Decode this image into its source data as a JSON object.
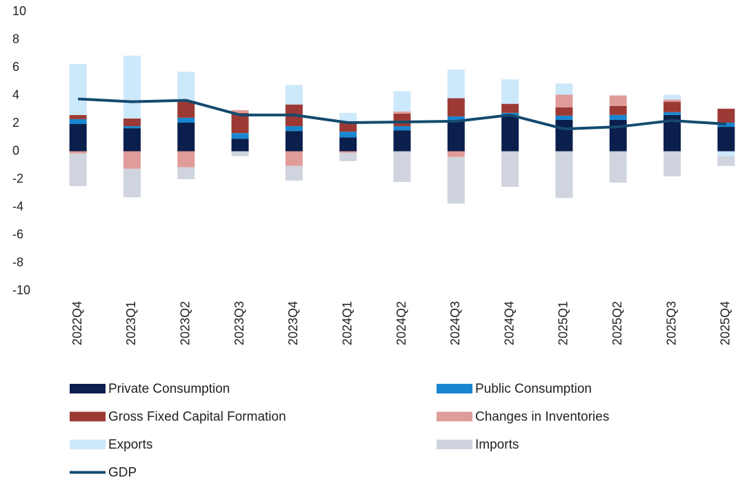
{
  "chart_data": {
    "type": "bar",
    "categories": [
      "2022Q4",
      "2023Q1",
      "2023Q2",
      "2023Q3",
      "2023Q4",
      "2024Q1",
      "2024Q2",
      "2024Q3",
      "2024Q4",
      "2025Q1",
      "2025Q2",
      "2025Q3",
      "2025Q4"
    ],
    "series": [
      {
        "name": "Private Consumption",
        "color": "#0b1f4d",
        "values": [
          1.95,
          1.65,
          2.05,
          0.9,
          1.45,
          1.0,
          1.5,
          2.2,
          2.55,
          2.25,
          2.25,
          2.6,
          1.75
        ]
      },
      {
        "name": "Public Consumption",
        "color": "#1a86d0",
        "values": [
          0.35,
          0.15,
          0.35,
          0.4,
          0.35,
          0.4,
          0.3,
          0.3,
          0.2,
          0.3,
          0.35,
          0.2,
          0.3
        ]
      },
      {
        "name": "Gross Fixed Capital Formation",
        "color": "#9b3a35",
        "values": [
          0.3,
          0.55,
          1.2,
          1.45,
          1.55,
          0.65,
          0.9,
          1.3,
          0.65,
          0.6,
          0.65,
          0.75,
          1.0
        ]
      },
      {
        "name": "Changes in Inventories",
        "color": "#e09c98",
        "values": [
          -0.15,
          -1.25,
          -1.15,
          0.2,
          -1.05,
          -0.1,
          0.15,
          -0.4,
          0,
          0.9,
          0.75,
          0.15,
          0
        ]
      },
      {
        "name": "Exports",
        "color": "#cce8fb",
        "values": [
          3.65,
          4.5,
          2.1,
          0,
          1.4,
          0.7,
          1.45,
          2.05,
          1.75,
          0.8,
          0,
          0.35,
          -0.35
        ]
      },
      {
        "name": "Imports",
        "color": "#d0d4de",
        "values": [
          -2.35,
          -2.05,
          -0.85,
          -0.35,
          -1.05,
          -0.6,
          -2.2,
          -3.35,
          -2.55,
          -3.35,
          -2.25,
          -1.8,
          -0.7
        ]
      },
      {
        "name": "GDP",
        "type": "line",
        "color": "#144a6e",
        "values": [
          3.75,
          3.55,
          3.65,
          2.6,
          2.6,
          2.05,
          2.1,
          2.15,
          2.6,
          1.6,
          1.75,
          2.2,
          1.95
        ]
      }
    ],
    "ylim": [
      -10,
      10
    ],
    "yticks": [
      -10,
      -8,
      -6,
      -4,
      -2,
      0,
      2,
      4,
      6,
      8,
      10
    ]
  }
}
